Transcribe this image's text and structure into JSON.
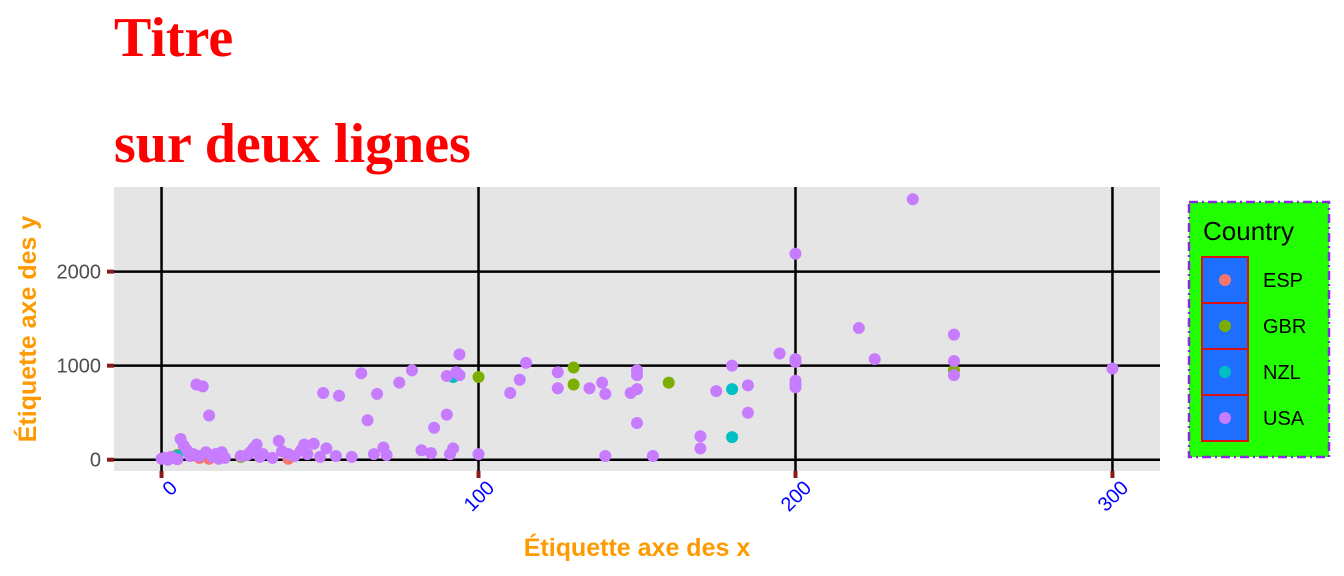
{
  "chart_data": {
    "type": "scatter",
    "title_lines": [
      "Titre",
      "sur deux lignes"
    ],
    "xlabel": "Étiquette axe des x",
    "ylabel": "Étiquette axe des y",
    "xlim": [
      -15,
      315
    ],
    "ylim": [
      -120,
      2900
    ],
    "x_ticks": [
      0,
      100,
      200,
      300
    ],
    "y_ticks": [
      0,
      1000,
      2000
    ],
    "grid": true,
    "legend": {
      "title": "Country",
      "placement": "right"
    },
    "series": [
      {
        "name": "ESP",
        "color": "#f8766d",
        "points": [
          [
            12,
            20
          ],
          [
            15,
            10
          ],
          [
            17,
            30
          ],
          [
            40,
            10
          ]
        ]
      },
      {
        "name": "GBR",
        "color": "#7cae00",
        "points": [
          [
            3,
            20
          ],
          [
            5,
            50
          ],
          [
            25,
            30
          ],
          [
            100,
            880
          ],
          [
            130,
            980
          ],
          [
            130,
            800
          ],
          [
            160,
            820
          ],
          [
            250,
            950
          ]
        ]
      },
      {
        "name": "NZL",
        "color": "#00bfc4",
        "points": [
          [
            5,
            40
          ],
          [
            92,
            880
          ],
          [
            180,
            750
          ],
          [
            180,
            240
          ]
        ]
      },
      {
        "name": "USA",
        "color": "#c77cff",
        "points": [
          [
            0,
            10
          ],
          [
            1,
            20
          ],
          [
            2,
            0
          ],
          [
            3,
            30
          ],
          [
            4,
            15
          ],
          [
            5,
            5
          ],
          [
            6,
            220
          ],
          [
            7,
            150
          ],
          [
            8,
            100
          ],
          [
            9,
            40
          ],
          [
            10,
            60
          ],
          [
            11,
            800
          ],
          [
            12,
            40
          ],
          [
            13,
            780
          ],
          [
            14,
            80
          ],
          [
            15,
            470
          ],
          [
            16,
            30
          ],
          [
            17,
            60
          ],
          [
            18,
            10
          ],
          [
            19,
            80
          ],
          [
            20,
            20
          ],
          [
            25,
            40
          ],
          [
            27,
            50
          ],
          [
            28,
            80
          ],
          [
            29,
            120
          ],
          [
            30,
            160
          ],
          [
            31,
            30
          ],
          [
            32,
            60
          ],
          [
            35,
            20
          ],
          [
            37,
            200
          ],
          [
            38,
            90
          ],
          [
            40,
            60
          ],
          [
            42,
            40
          ],
          [
            44,
            100
          ],
          [
            45,
            160
          ],
          [
            46,
            60
          ],
          [
            48,
            170
          ],
          [
            50,
            30
          ],
          [
            51,
            710
          ],
          [
            52,
            120
          ],
          [
            55,
            40
          ],
          [
            56,
            680
          ],
          [
            60,
            30
          ],
          [
            63,
            920
          ],
          [
            65,
            420
          ],
          [
            67,
            60
          ],
          [
            68,
            700
          ],
          [
            70,
            130
          ],
          [
            71,
            50
          ],
          [
            75,
            820
          ],
          [
            79,
            950
          ],
          [
            82,
            100
          ],
          [
            85,
            70
          ],
          [
            86,
            340
          ],
          [
            90,
            890
          ],
          [
            90,
            480
          ],
          [
            91,
            60
          ],
          [
            92,
            120
          ],
          [
            93,
            930
          ],
          [
            94,
            1120
          ],
          [
            94,
            900
          ],
          [
            100,
            60
          ],
          [
            110,
            710
          ],
          [
            113,
            850
          ],
          [
            115,
            1030
          ],
          [
            125,
            930
          ],
          [
            125,
            760
          ],
          [
            135,
            760
          ],
          [
            139,
            820
          ],
          [
            140,
            700
          ],
          [
            140,
            40
          ],
          [
            148,
            710
          ],
          [
            150,
            750
          ],
          [
            150,
            390
          ],
          [
            150,
            950
          ],
          [
            150,
            900
          ],
          [
            155,
            40
          ],
          [
            170,
            250
          ],
          [
            170,
            120
          ],
          [
            175,
            730
          ],
          [
            180,
            1000
          ],
          [
            185,
            790
          ],
          [
            185,
            500
          ],
          [
            195,
            1130
          ],
          [
            200,
            2190
          ],
          [
            200,
            1070
          ],
          [
            200,
            1040
          ],
          [
            200,
            840
          ],
          [
            200,
            800
          ],
          [
            200,
            770
          ],
          [
            220,
            1400
          ],
          [
            225,
            1070
          ],
          [
            237,
            2770
          ],
          [
            250,
            1330
          ],
          [
            250,
            1050
          ],
          [
            250,
            900
          ],
          [
            300,
            970
          ]
        ]
      }
    ]
  }
}
